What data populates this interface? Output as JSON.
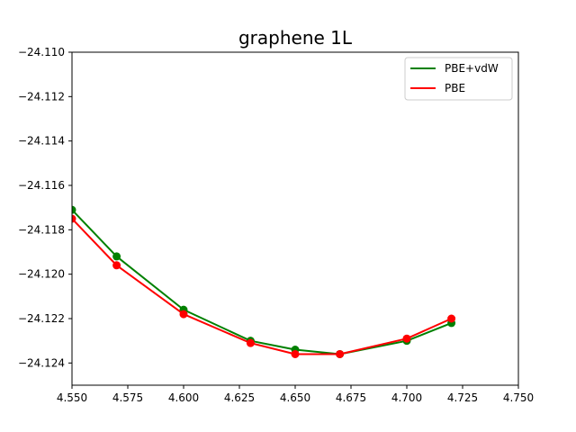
{
  "chart_data": {
    "type": "line",
    "title": "graphene 1L",
    "xlabel": "",
    "ylabel": "",
    "xlim": [
      4.55,
      4.75
    ],
    "ylim": [
      -24.125,
      -24.11
    ],
    "xticks": [
      "4.550",
      "4.575",
      "4.600",
      "4.625",
      "4.650",
      "4.675",
      "4.700",
      "4.725",
      "4.750"
    ],
    "yticks": [
      "−24.110",
      "−24.112",
      "−24.114",
      "−24.116",
      "−24.118",
      "−24.120",
      "−24.122",
      "−24.124"
    ],
    "grid": false,
    "legend_position": "upper right",
    "series": [
      {
        "name": "PBE+vdW",
        "color": "#008000",
        "x": [
          4.55,
          4.57,
          4.6,
          4.63,
          4.65,
          4.67,
          4.7,
          4.72
        ],
        "y": [
          -24.1171,
          -24.1192,
          -24.1216,
          -24.123,
          -24.1234,
          -24.1236,
          -24.123,
          -24.1222
        ]
      },
      {
        "name": "PBE",
        "color": "#ff0000",
        "x": [
          4.55,
          4.57,
          4.6,
          4.63,
          4.65,
          4.67,
          4.7,
          4.72
        ],
        "y": [
          -24.1175,
          -24.1196,
          -24.1218,
          -24.1231,
          -24.1236,
          -24.1236,
          -24.1229,
          -24.122
        ]
      }
    ]
  }
}
